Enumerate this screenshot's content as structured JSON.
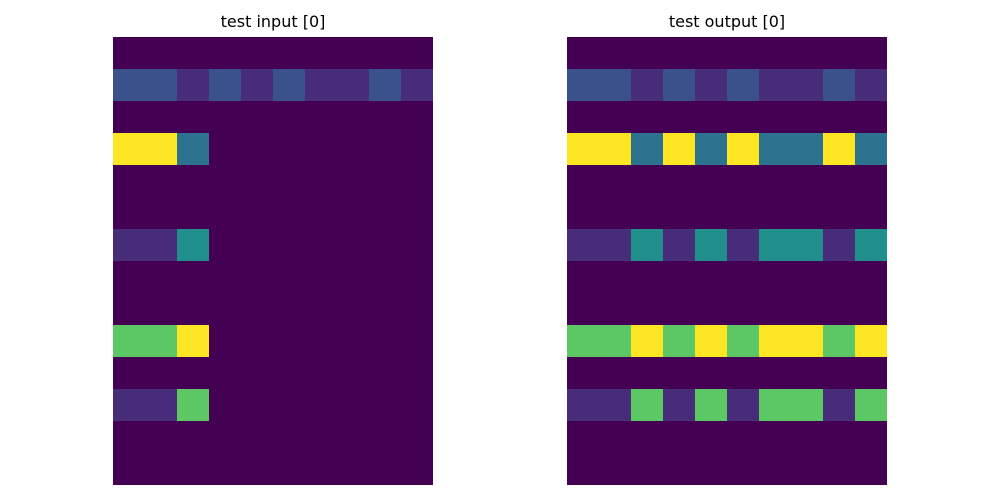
{
  "chart_data": [
    {
      "type": "heatmap",
      "title": "test input [0]",
      "colormap": "viridis",
      "vmin": 0,
      "vmax": 9,
      "grid_on": false,
      "axes_visible": false,
      "rows": 14,
      "cols": 10,
      "values": [
        [
          0,
          0,
          0,
          0,
          0,
          0,
          0,
          0,
          0,
          0
        ],
        [
          2,
          2,
          1,
          2,
          1,
          2,
          1,
          1,
          2,
          1
        ],
        [
          0,
          0,
          0,
          0,
          0,
          0,
          0,
          0,
          0,
          0
        ],
        [
          9,
          9,
          3,
          0,
          0,
          0,
          0,
          0,
          0,
          0
        ],
        [
          0,
          0,
          0,
          0,
          0,
          0,
          0,
          0,
          0,
          0
        ],
        [
          0,
          0,
          0,
          0,
          0,
          0,
          0,
          0,
          0,
          0
        ],
        [
          1,
          1,
          4,
          0,
          0,
          0,
          0,
          0,
          0,
          0
        ],
        [
          0,
          0,
          0,
          0,
          0,
          0,
          0,
          0,
          0,
          0
        ],
        [
          0,
          0,
          0,
          0,
          0,
          0,
          0,
          0,
          0,
          0
        ],
        [
          6,
          6,
          9,
          0,
          0,
          0,
          0,
          0,
          0,
          0
        ],
        [
          0,
          0,
          0,
          0,
          0,
          0,
          0,
          0,
          0,
          0
        ],
        [
          1,
          1,
          6,
          0,
          0,
          0,
          0,
          0,
          0,
          0
        ],
        [
          0,
          0,
          0,
          0,
          0,
          0,
          0,
          0,
          0,
          0
        ],
        [
          0,
          0,
          0,
          0,
          0,
          0,
          0,
          0,
          0,
          0
        ]
      ]
    },
    {
      "type": "heatmap",
      "title": "test output [0]",
      "colormap": "viridis",
      "vmin": 0,
      "vmax": 9,
      "grid_on": false,
      "axes_visible": false,
      "rows": 14,
      "cols": 10,
      "values": [
        [
          0,
          0,
          0,
          0,
          0,
          0,
          0,
          0,
          0,
          0
        ],
        [
          2,
          2,
          1,
          2,
          1,
          2,
          1,
          1,
          2,
          1
        ],
        [
          0,
          0,
          0,
          0,
          0,
          0,
          0,
          0,
          0,
          0
        ],
        [
          9,
          9,
          3,
          9,
          3,
          9,
          3,
          3,
          9,
          3
        ],
        [
          0,
          0,
          0,
          0,
          0,
          0,
          0,
          0,
          0,
          0
        ],
        [
          0,
          0,
          0,
          0,
          0,
          0,
          0,
          0,
          0,
          0
        ],
        [
          1,
          1,
          4,
          1,
          4,
          1,
          4,
          4,
          1,
          4
        ],
        [
          0,
          0,
          0,
          0,
          0,
          0,
          0,
          0,
          0,
          0
        ],
        [
          0,
          0,
          0,
          0,
          0,
          0,
          0,
          0,
          0,
          0
        ],
        [
          6,
          6,
          9,
          6,
          9,
          6,
          9,
          9,
          6,
          9
        ],
        [
          0,
          0,
          0,
          0,
          0,
          0,
          0,
          0,
          0,
          0
        ],
        [
          1,
          1,
          6,
          1,
          6,
          1,
          6,
          6,
          1,
          6
        ],
        [
          0,
          0,
          0,
          0,
          0,
          0,
          0,
          0,
          0,
          0
        ],
        [
          0,
          0,
          0,
          0,
          0,
          0,
          0,
          0,
          0,
          0
        ]
      ]
    }
  ],
  "palette": [
    "#440154",
    "#472c7a",
    "#3b518b",
    "#2c718e",
    "#21908d",
    "#27ad81",
    "#5cc863",
    "#aadc32",
    "#fde725",
    "#fde725"
  ]
}
